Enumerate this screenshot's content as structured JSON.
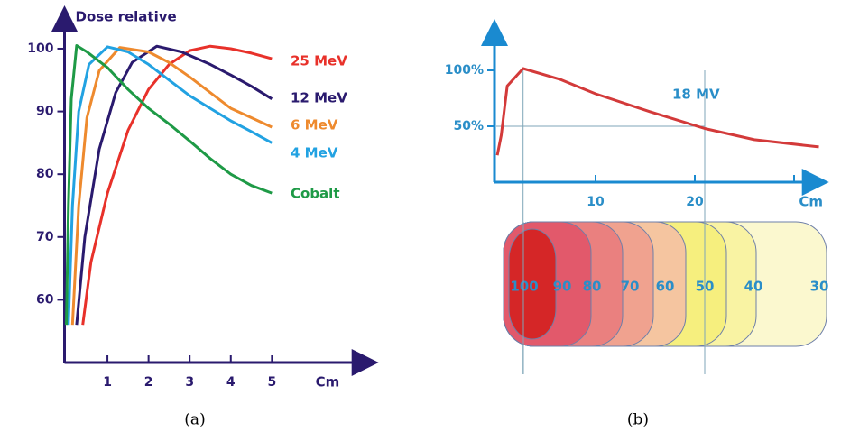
{
  "chart_data": [
    {
      "type": "line",
      "y_label": "Dose relative",
      "x_label": "Cm",
      "xlim": [
        0,
        7.4
      ],
      "ylim": [
        50,
        105.6
      ],
      "xticks": [
        1,
        2,
        3,
        4,
        5
      ],
      "yticks": [
        60,
        70,
        80,
        90,
        100
      ],
      "series": [
        {
          "name": "25 MeV",
          "color": "#e8312a",
          "x": [
            0.4,
            0.6,
            1,
            1.5,
            2,
            2.5,
            3,
            3.5,
            4,
            4.5,
            5
          ],
          "values": [
            56,
            66,
            77,
            87,
            93.5,
            97.5,
            99.7,
            100.4,
            100,
            99.3,
            98.4
          ]
        },
        {
          "name": "12 MeV",
          "color": "#2a1a6e",
          "x": [
            0.25,
            0.45,
            0.8,
            1.2,
            1.6,
            2.2,
            2.8,
            3.5,
            4,
            4.5,
            5
          ],
          "values": [
            56,
            70,
            84,
            93,
            97.8,
            100.4,
            99.5,
            97.5,
            95.8,
            94,
            92
          ]
        },
        {
          "name": "6 MeV",
          "color": "#ee8a2e",
          "x": [
            0.15,
            0.3,
            0.5,
            0.8,
            1.3,
            2,
            2.5,
            3,
            3.5,
            4,
            4.5,
            5
          ],
          "values": [
            56,
            75,
            89,
            96.5,
            100.2,
            99.5,
            97.8,
            95.5,
            93,
            90.5,
            89,
            87.5
          ]
        },
        {
          "name": "4 MeV",
          "color": "#22a2e2",
          "x": [
            0.05,
            0.15,
            0.3,
            0.55,
            1,
            1.5,
            2,
            2.5,
            3,
            3.5,
            4,
            4.5,
            5
          ],
          "values": [
            56,
            75,
            90,
            97.5,
            100.3,
            99.5,
            97.5,
            95,
            92.5,
            90.5,
            88.5,
            86.8,
            85
          ]
        },
        {
          "name": "Cobalt",
          "color": "#1e9a46",
          "x": [
            0,
            0.05,
            0.12,
            0.25,
            0.5,
            1,
            1.5,
            2,
            2.5,
            3,
            3.5,
            4,
            4.5,
            5
          ],
          "values": [
            56,
            75,
            92,
            100.5,
            99.5,
            97,
            93.5,
            90.5,
            88,
            85.3,
            82.5,
            80,
            78.2,
            77
          ]
        }
      ]
    },
    {
      "type": "line",
      "x_label": "Cm",
      "xlim": [
        0,
        32.7
      ],
      "ylim": [
        0,
        138.7
      ],
      "xticks": [
        10,
        20
      ],
      "minor_xticks": [
        30
      ],
      "yticks": [
        {
          "value": 100,
          "label": "100%"
        },
        {
          "value": 50,
          "label": "50%"
        }
      ],
      "guide_x": [
        2.7,
        21
      ],
      "guide_y": 50,
      "series": [
        {
          "name": "18 MV",
          "color": "#d33a3a",
          "x": [
            0.1,
            0.5,
            1.1,
            2.7,
            6.4,
            10,
            15.5,
            21,
            26,
            32.5
          ],
          "values": [
            24,
            42,
            86,
            101.6,
            92,
            79,
            63,
            48,
            38,
            31.5
          ]
        }
      ]
    }
  ],
  "isodose": {
    "labels": [
      "100",
      "90",
      "80",
      "70",
      "60",
      "50",
      "40",
      "30"
    ],
    "colors": [
      "#d42424",
      "#e2566a",
      "#e97e7e",
      "#efa08e",
      "#f4c2a2",
      "#f6ee7c",
      "#f9f2a0",
      "#fbf8cc"
    ]
  },
  "captions": [
    "(a)",
    "(b)"
  ]
}
